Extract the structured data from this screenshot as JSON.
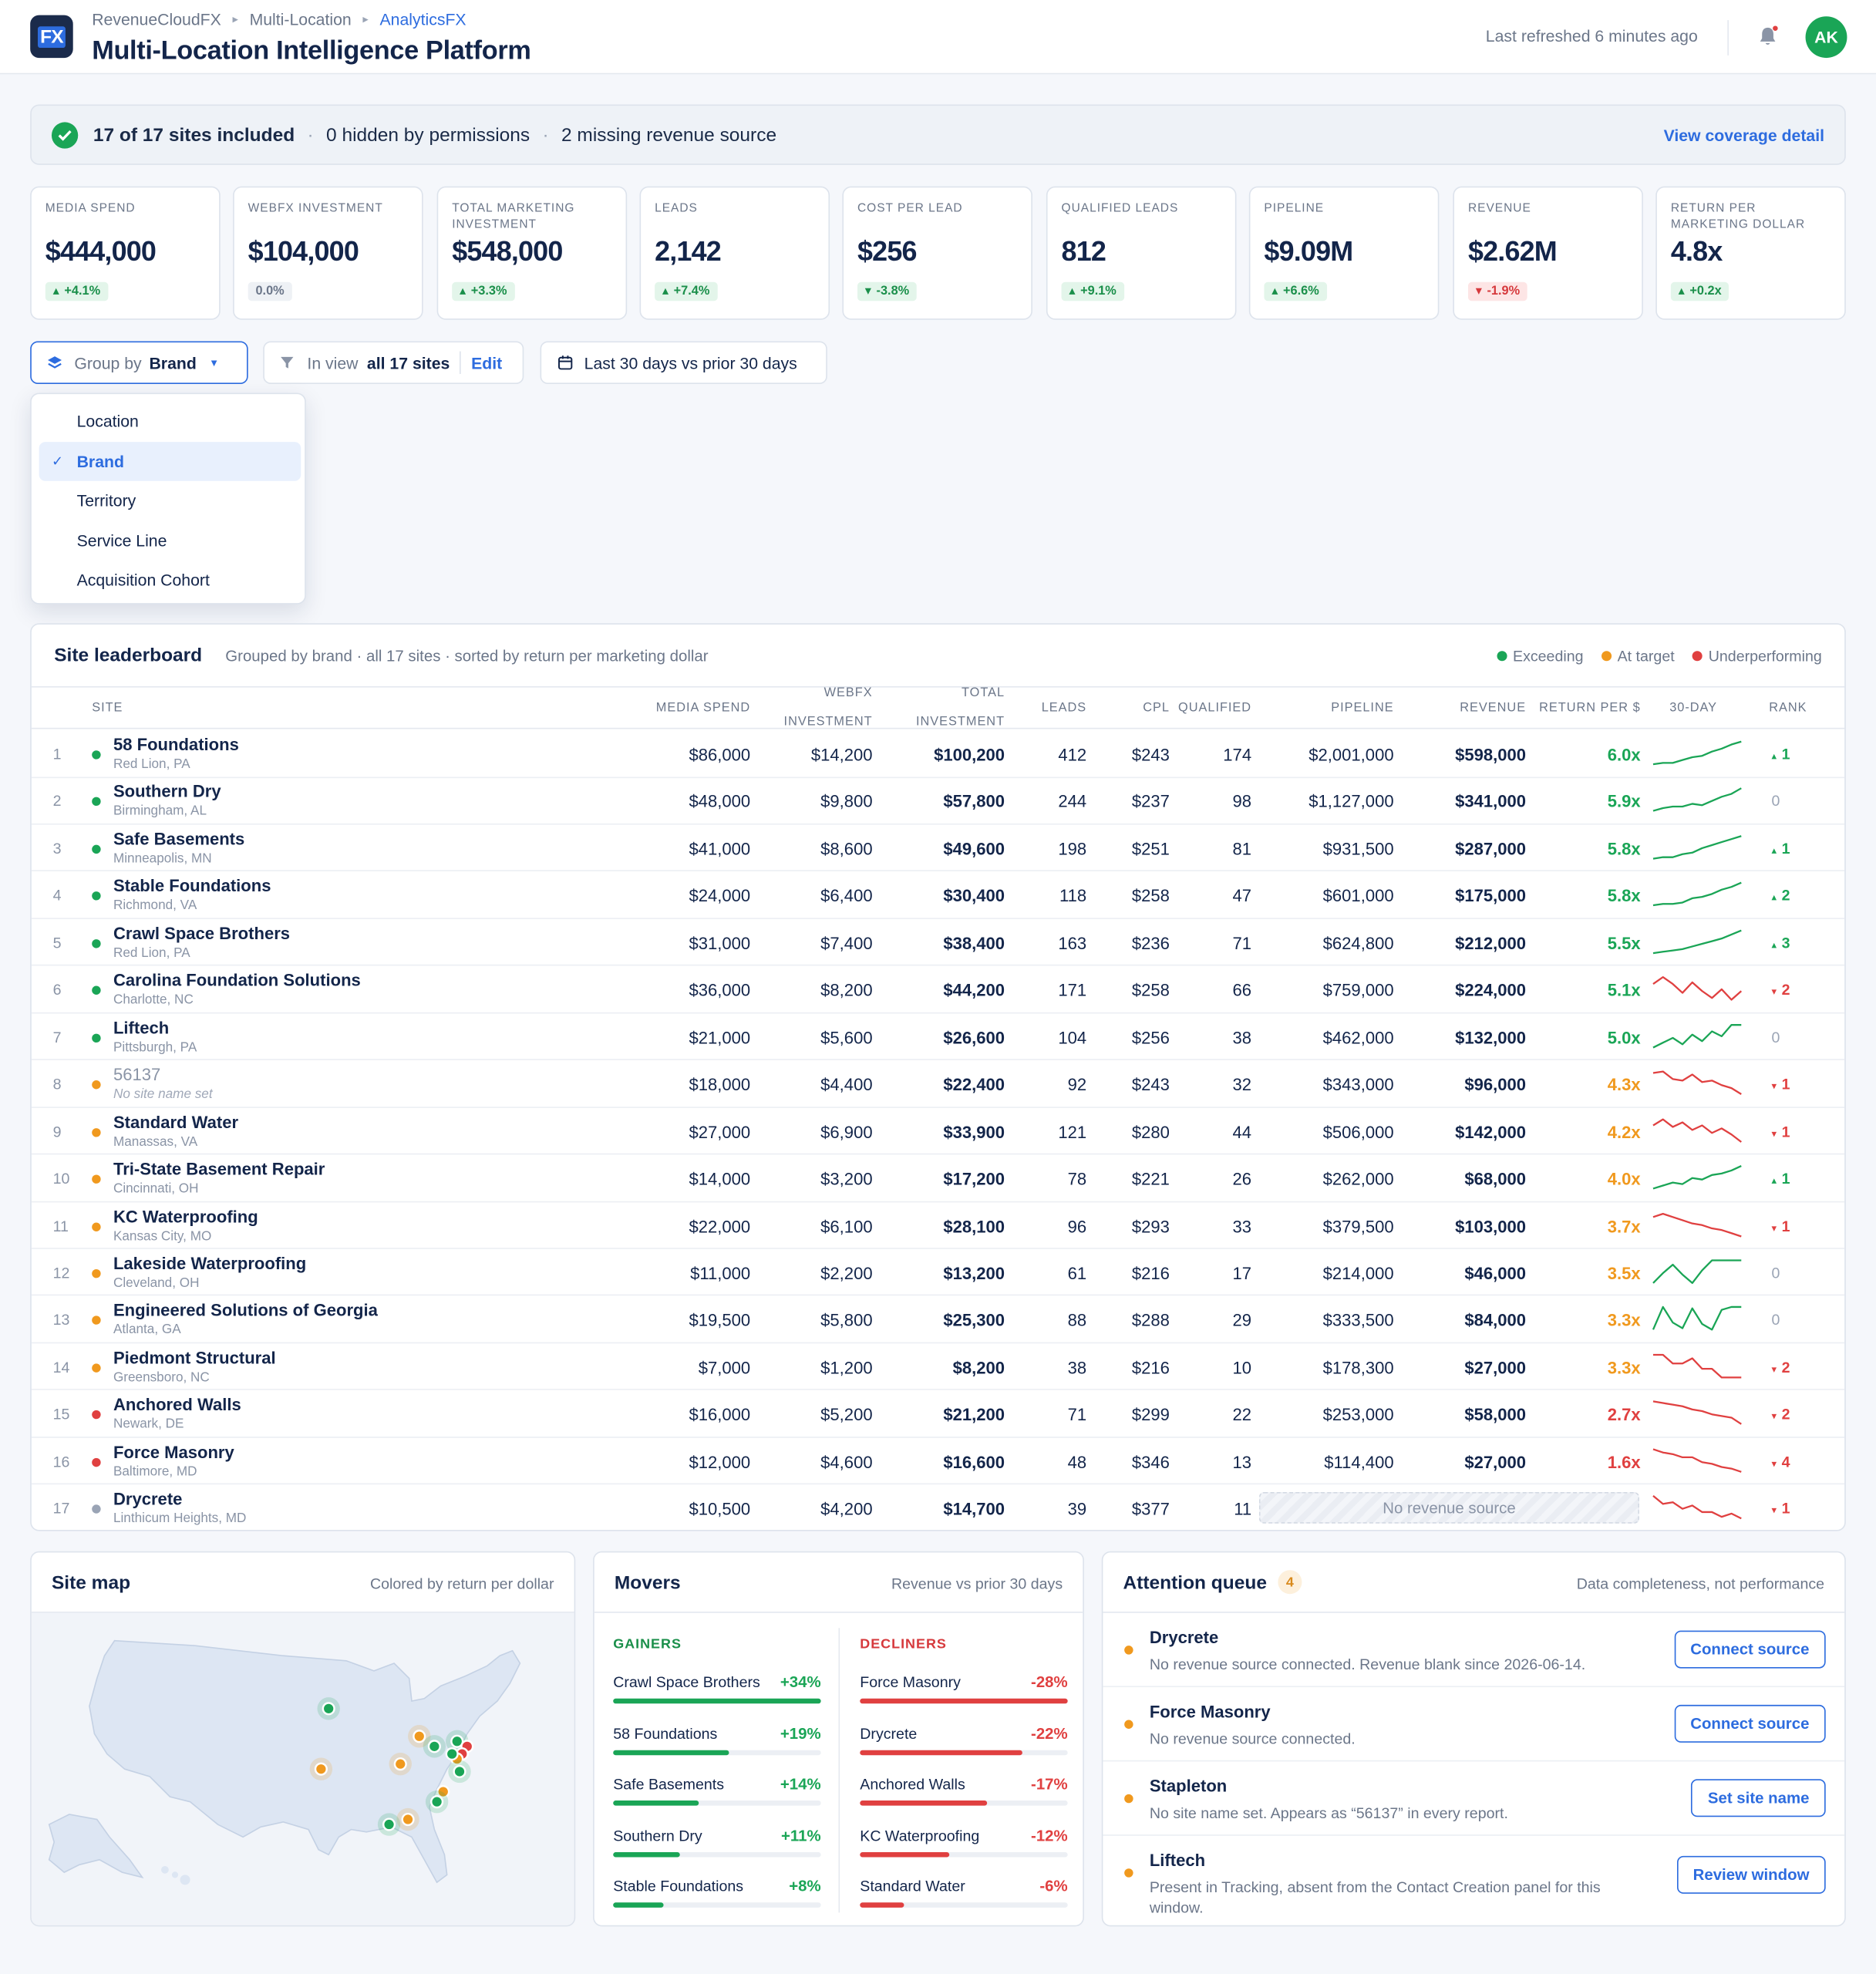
{
  "brand_logo": "FX",
  "breadcrumb": [
    "RevenueCloudFX",
    "Multi-Location",
    "AnalyticsFX"
  ],
  "page_title": "Multi-Location Intelligence Platform",
  "last_refreshed": "Last refreshed 6 minutes ago",
  "user_initials": "AK",
  "coverage": {
    "included": "17 of 17 sites included",
    "hidden": "0 hidden by permissions",
    "missing": "2 missing revenue source",
    "link": "View coverage detail"
  },
  "kpis": [
    {
      "label": "Media Spend",
      "value": "$444,000",
      "delta": "+4.1%",
      "trend": "pos"
    },
    {
      "label": "WebFX Investment",
      "value": "$104,000",
      "delta": "0.0%",
      "trend": "neu"
    },
    {
      "label": "Total Marketing Investment",
      "value": "$548,000",
      "delta": "+3.3%",
      "trend": "pos"
    },
    {
      "label": "Leads",
      "value": "2,142",
      "delta": "+7.4%",
      "trend": "pos"
    },
    {
      "label": "Cost Per Lead",
      "value": "$256",
      "delta": "-3.8%",
      "trend": "pos"
    },
    {
      "label": "Qualified Leads",
      "value": "812",
      "delta": "+9.1%",
      "trend": "pos"
    },
    {
      "label": "Pipeline",
      "value": "$9.09M",
      "delta": "+6.6%",
      "trend": "pos"
    },
    {
      "label": "Revenue",
      "value": "$2.62M",
      "delta": "-1.9%",
      "trend": "neg"
    },
    {
      "label": "Return Per Marketing Dollar",
      "value": "4.8x",
      "delta": "+0.2x",
      "trend": "pos"
    }
  ],
  "controls": {
    "group_prefix": "Group by",
    "group_value": "Brand",
    "inview_prefix": "In view",
    "inview_value": "all 17 sites",
    "edit": "Edit",
    "date_range": "Last 30 days vs prior 30 days"
  },
  "group_menu": {
    "options": [
      "Location",
      "Brand",
      "Territory",
      "Service Line",
      "Acquisition Cohort"
    ],
    "selected": "Brand"
  },
  "leaderboard": {
    "title": "Site leaderboard",
    "subtitle": "Grouped by brand · all 17 sites · sorted by return per marketing dollar",
    "legend": [
      {
        "label": "Exceeding",
        "color": "#1aa556"
      },
      {
        "label": "At target",
        "color": "#f0991e"
      },
      {
        "label": "Underperforming",
        "color": "#e04040"
      }
    ],
    "columns": {
      "site": "SITE",
      "media": "MEDIA SPEND",
      "webfx_1": "WEBFX",
      "webfx_2": "INVESTMENT",
      "total_1": "TOTAL",
      "total_2": "INVESTMENT",
      "leads": "LEADS",
      "cpl": "CPL",
      "qualified": "QUALIFIED",
      "pipeline": "PIPELINE",
      "revenue": "REVENUE",
      "return": "RETURN PER $",
      "trend": "30-DAY",
      "rank": "RANK"
    },
    "rows": [
      {
        "n": "1",
        "name": "58 Foundations",
        "loc": "Red Lion, PA",
        "status": "exceeding",
        "media": "$86,000",
        "webfx": "$14,200",
        "total": "$100,200",
        "leads": "412",
        "cpl": "$243",
        "qual": "174",
        "pipeline": "$2,001,000",
        "revenue": "$598,000",
        "ret": "6.0x",
        "spark": [
          4,
          5,
          5,
          7,
          9,
          10,
          13,
          15,
          18,
          20
        ],
        "rank": "1",
        "rank_dir": "up"
      },
      {
        "n": "2",
        "name": "Southern Dry",
        "loc": "Birmingham, AL",
        "status": "exceeding",
        "media": "$48,000",
        "webfx": "$9,800",
        "total": "$57,800",
        "leads": "244",
        "cpl": "$237",
        "qual": "98",
        "pipeline": "$1,127,000",
        "revenue": "$341,000",
        "ret": "5.9x",
        "spark": [
          3,
          5,
          6,
          6,
          8,
          7,
          10,
          13,
          15,
          19
        ],
        "rank": "0",
        "rank_dir": "flat"
      },
      {
        "n": "3",
        "name": "Safe Basements",
        "loc": "Minneapolis, MN",
        "status": "exceeding",
        "media": "$41,000",
        "webfx": "$8,600",
        "total": "$49,600",
        "leads": "198",
        "cpl": "$251",
        "qual": "81",
        "pipeline": "$931,500",
        "revenue": "$287,000",
        "ret": "5.8x",
        "spark": [
          4,
          5,
          5,
          7,
          8,
          11,
          13,
          15,
          17,
          19
        ],
        "rank": "1",
        "rank_dir": "up"
      },
      {
        "n": "4",
        "name": "Stable Foundations",
        "loc": "Richmond, VA",
        "status": "exceeding",
        "media": "$24,000",
        "webfx": "$6,400",
        "total": "$30,400",
        "leads": "118",
        "cpl": "$258",
        "qual": "47",
        "pipeline": "$601,000",
        "revenue": "$175,000",
        "ret": "5.8x",
        "spark": [
          4,
          5,
          5,
          6,
          9,
          10,
          12,
          15,
          17,
          20
        ],
        "rank": "2",
        "rank_dir": "up"
      },
      {
        "n": "5",
        "name": "Crawl Space Brothers",
        "loc": "Red Lion, PA",
        "status": "exceeding",
        "media": "$31,000",
        "webfx": "$7,400",
        "total": "$38,400",
        "leads": "163",
        "cpl": "$236",
        "qual": "71",
        "pipeline": "$624,800",
        "revenue": "$212,000",
        "ret": "5.5x",
        "spark": [
          3,
          4,
          5,
          6,
          8,
          10,
          12,
          14,
          17,
          20
        ],
        "rank": "3",
        "rank_dir": "up"
      },
      {
        "n": "6",
        "name": "Carolina Foundation Solutions",
        "loc": "Charlotte, NC",
        "status": "exceeding",
        "media": "$36,000",
        "webfx": "$8,200",
        "total": "$44,200",
        "leads": "171",
        "cpl": "$258",
        "qual": "66",
        "pipeline": "$759,000",
        "revenue": "$224,000",
        "ret": "5.1x",
        "spark": [
          14,
          18,
          14,
          9,
          15,
          10,
          6,
          11,
          5,
          10
        ],
        "rank": "2",
        "rank_dir": "down"
      },
      {
        "n": "7",
        "name": "Liftech",
        "loc": "Pittsburgh, PA",
        "status": "exceeding",
        "media": "$21,000",
        "webfx": "$5,600",
        "total": "$26,600",
        "leads": "104",
        "cpl": "$256",
        "qual": "38",
        "pipeline": "$462,000",
        "revenue": "$132,000",
        "ret": "5.0x",
        "spark": [
          4,
          7,
          10,
          6,
          12,
          8,
          14,
          11,
          18,
          18
        ],
        "rank": "0",
        "rank_dir": "flat"
      },
      {
        "n": "8",
        "name": "56137",
        "loc": "No site name set",
        "status": "at-target",
        "unnamed": true,
        "media": "$18,000",
        "webfx": "$4,400",
        "total": "$22,400",
        "leads": "92",
        "cpl": "$243",
        "qual": "32",
        "pipeline": "$343,000",
        "revenue": "$96,000",
        "ret": "4.3x",
        "spark": [
          18,
          19,
          14,
          13,
          17,
          12,
          13,
          10,
          8,
          4
        ],
        "rank": "1",
        "rank_dir": "down"
      },
      {
        "n": "9",
        "name": "Standard Water",
        "loc": "Manassas, VA",
        "status": "at-target",
        "media": "$27,000",
        "webfx": "$6,900",
        "total": "$33,900",
        "leads": "121",
        "cpl": "$280",
        "qual": "44",
        "pipeline": "$506,000",
        "revenue": "$142,000",
        "ret": "4.2x",
        "spark": [
          15,
          19,
          14,
          17,
          12,
          15,
          10,
          13,
          9,
          4
        ],
        "rank": "1",
        "rank_dir": "down"
      },
      {
        "n": "10",
        "name": "Tri-State Basement Repair",
        "loc": "Cincinnati, OH",
        "status": "at-target",
        "media": "$14,000",
        "webfx": "$3,200",
        "total": "$17,200",
        "leads": "78",
        "cpl": "$221",
        "qual": "26",
        "pipeline": "$262,000",
        "revenue": "$68,000",
        "ret": "4.0x",
        "spark": [
          5,
          7,
          9,
          8,
          12,
          11,
          14,
          15,
          17,
          20
        ],
        "rank": "1",
        "rank_dir": "up"
      },
      {
        "n": "11",
        "name": "KC Waterproofing",
        "loc": "Kansas City, MO",
        "status": "at-target",
        "media": "$22,000",
        "webfx": "$6,100",
        "total": "$28,100",
        "leads": "96",
        "cpl": "$293",
        "qual": "33",
        "pipeline": "$379,500",
        "revenue": "$103,000",
        "ret": "3.7x",
        "spark": [
          17,
          19,
          17,
          15,
          13,
          12,
          10,
          9,
          7,
          5
        ],
        "rank": "1",
        "rank_dir": "down"
      },
      {
        "n": "12",
        "name": "Lakeside Waterproofing",
        "loc": "Cleveland, OH",
        "status": "at-target",
        "media": "$11,000",
        "webfx": "$2,200",
        "total": "$13,200",
        "leads": "61",
        "cpl": "$216",
        "qual": "17",
        "pipeline": "$214,000",
        "revenue": "$46,000",
        "ret": "3.5x",
        "spark": [
          3,
          10,
          16,
          9,
          3,
          12,
          19,
          19,
          19,
          19
        ],
        "rank": "0",
        "rank_dir": "flat"
      },
      {
        "n": "13",
        "name": "Engineered Solutions of Georgia",
        "loc": "Atlanta, GA",
        "status": "at-target",
        "media": "$19,500",
        "webfx": "$5,800",
        "total": "$25,300",
        "leads": "88",
        "cpl": "$288",
        "qual": "29",
        "pipeline": "$333,500",
        "revenue": "$84,000",
        "ret": "3.3x",
        "spark": [
          3,
          19,
          8,
          4,
          18,
          7,
          3,
          17,
          19,
          19
        ],
        "rank": "0",
        "rank_dir": "flat"
      },
      {
        "n": "14",
        "name": "Piedmont Structural",
        "loc": "Greensboro, NC",
        "status": "at-target",
        "media": "$7,000",
        "webfx": "$1,200",
        "total": "$8,200",
        "leads": "38",
        "cpl": "$216",
        "qual": "10",
        "pipeline": "$178,300",
        "revenue": "$27,000",
        "ret": "3.3x",
        "spark": [
          18,
          18,
          13,
          13,
          16,
          10,
          10,
          5,
          5,
          5
        ],
        "rank": "2",
        "rank_dir": "down"
      },
      {
        "n": "15",
        "name": "Anchored Walls",
        "loc": "Newark, DE",
        "status": "underperforming",
        "media": "$16,000",
        "webfx": "$5,200",
        "total": "$21,200",
        "leads": "71",
        "cpl": "$299",
        "qual": "22",
        "pipeline": "$253,000",
        "revenue": "$58,000",
        "ret": "2.7x",
        "spark": [
          18,
          17,
          16,
          15,
          13,
          12,
          10,
          9,
          8,
          4
        ],
        "rank": "2",
        "rank_dir": "down"
      },
      {
        "n": "16",
        "name": "Force Masonry",
        "loc": "Baltimore, MD",
        "status": "underperforming",
        "media": "$12,000",
        "webfx": "$4,600",
        "total": "$16,600",
        "leads": "48",
        "cpl": "$346",
        "qual": "13",
        "pipeline": "$114,400",
        "revenue": "$27,000",
        "ret": "1.6x",
        "spark": [
          19,
          17,
          16,
          14,
          14,
          11,
          10,
          8,
          7,
          5
        ],
        "rank": "4",
        "rank_dir": "down"
      },
      {
        "n": "17",
        "name": "Drycrete",
        "loc": "Linthicum Heights, MD",
        "status": "no-data",
        "media": "$10,500",
        "webfx": "$4,200",
        "total": "$14,700",
        "leads": "39",
        "cpl": "$377",
        "qual": "11",
        "pipeline": "",
        "revenue": "",
        "ret": "",
        "no_revenue": "No revenue source",
        "spark": [
          18,
          13,
          14,
          10,
          12,
          8,
          8,
          5,
          7,
          4
        ],
        "rank": "1",
        "rank_dir": "down"
      }
    ]
  },
  "site_map": {
    "title": "Site map",
    "subtitle": "Colored by return per dollar"
  },
  "movers": {
    "title": "Movers",
    "subtitle": "Revenue vs prior 30 days",
    "gainers_label": "GAINERS",
    "decliners_label": "DECLINERS",
    "gainers": [
      {
        "name": "Crawl Space Brothers",
        "pct": "+34%",
        "share": 1.0
      },
      {
        "name": "58 Foundations",
        "pct": "+19%",
        "share": 0.56
      },
      {
        "name": "Safe Basements",
        "pct": "+14%",
        "share": 0.41
      },
      {
        "name": "Southern Dry",
        "pct": "+11%",
        "share": 0.32
      },
      {
        "name": "Stable Foundations",
        "pct": "+8%",
        "share": 0.24
      }
    ],
    "decliners": [
      {
        "name": "Force Masonry",
        "pct": "-28%",
        "share": 1.0
      },
      {
        "name": "Drycrete",
        "pct": "-22%",
        "share": 0.78
      },
      {
        "name": "Anchored Walls",
        "pct": "-17%",
        "share": 0.61
      },
      {
        "name": "KC Waterproofing",
        "pct": "-12%",
        "share": 0.43
      },
      {
        "name": "Standard Water",
        "pct": "-6%",
        "share": 0.21
      }
    ]
  },
  "attention": {
    "title": "Attention queue",
    "count": "4",
    "subtitle": "Data completeness, not performance",
    "items": [
      {
        "name": "Drycrete",
        "desc": "No revenue source connected. Revenue blank since 2026-06-14.",
        "action": "Connect source"
      },
      {
        "name": "Force Masonry",
        "desc": "No revenue source connected.",
        "action": "Connect source"
      },
      {
        "name": "Stapleton",
        "desc": "No site name set. Appears as “56137” in every report.",
        "action": "Set site name"
      },
      {
        "name": "Liftech",
        "desc": "Present in Tracking, absent from the Contact Creation panel for this window.",
        "action": "Review window"
      }
    ]
  },
  "colors": {
    "accent": "#2d6cdf",
    "exceeding": "#1aa556",
    "at_target": "#f0991e",
    "underperforming": "#e04040",
    "no_data": "#9aa4b5"
  }
}
